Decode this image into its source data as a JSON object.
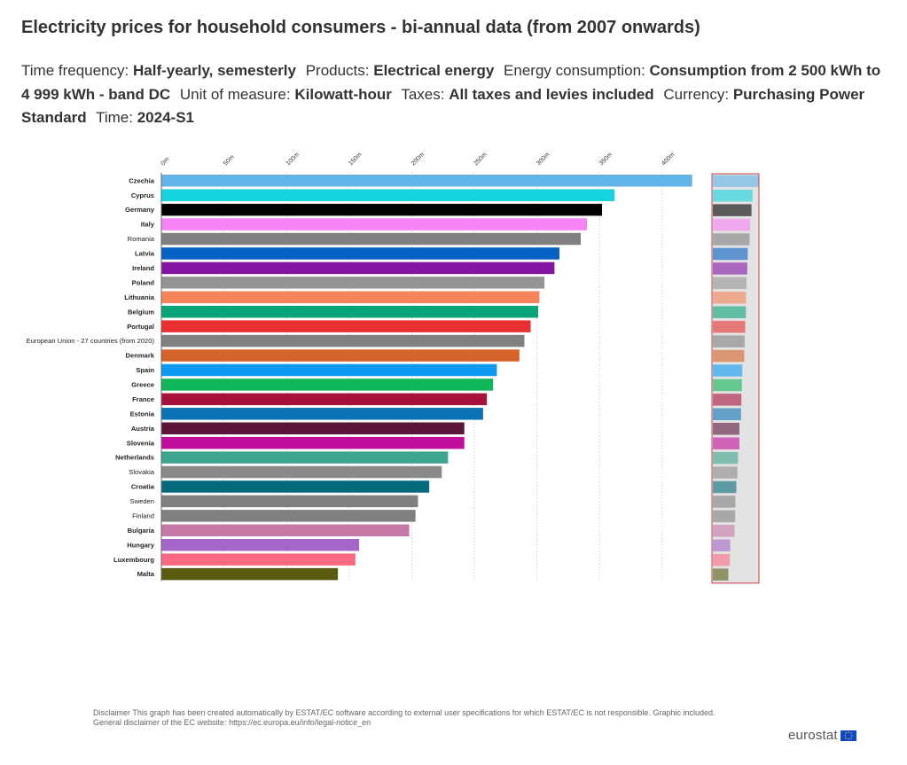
{
  "header": {
    "title": "Electricity prices for household consumers - bi-annual data (from 2007 onwards)",
    "filters": [
      {
        "label": "Time frequency:",
        "value": "Half-yearly, semesterly"
      },
      {
        "label": "Products:",
        "value": "Electrical energy"
      },
      {
        "label": "Energy consumption:",
        "value": "Consumption from 2 500 kWh to 4 999 kWh - band DC"
      },
      {
        "label": "Unit of measure:",
        "value": "Kilowatt-hour"
      },
      {
        "label": "Taxes:",
        "value": "All taxes and levies included"
      },
      {
        "label": "Currency:",
        "value": "Purchasing Power Standard"
      },
      {
        "label": "Time:",
        "value": "2024-S1"
      }
    ]
  },
  "footer": {
    "disclaimer_line1": "Disclaimer This graph has been created automatically by ESTAT/EC software according to external user specifications for which ESTAT/EC is not responsible. Graphic included.",
    "disclaimer_line2": "General disclaimer of the EC website: https://ec.europa.eu/info/legal-notice_en",
    "brand": "eurostat"
  },
  "chart_data": {
    "type": "bar",
    "orientation": "horizontal",
    "title": "",
    "xlabel": "",
    "ylabel": "",
    "xlim": [
      0,
      420
    ],
    "ticks": [
      0,
      50,
      100,
      150,
      200,
      250,
      300,
      350,
      400
    ],
    "tick_labels": [
      "0m",
      "50m",
      "100m",
      "150m",
      "200m",
      "250m",
      "300m",
      "350m",
      "400m"
    ],
    "grid": true,
    "overview_minimap": true,
    "categories": [
      "Czechia",
      "Cyprus",
      "Germany",
      "Italy",
      "Romania",
      "Latvia",
      "Ireland",
      "Poland",
      "Lithuania",
      "Belgium",
      "Portugal",
      "European Union - 27 countries (from 2020)",
      "Denmark",
      "Spain",
      "Greece",
      "France",
      "Estonia",
      "Austria",
      "Slovenia",
      "Netherlands",
      "Slovakia",
      "Croatia",
      "Sweden",
      "Finland",
      "Bulgaria",
      "Hungary",
      "Luxembourg",
      "Malta"
    ],
    "values": [
      424,
      362,
      352,
      340,
      335,
      318,
      314,
      306,
      302,
      301,
      295,
      290,
      286,
      268,
      265,
      260,
      257,
      242,
      242,
      229,
      224,
      214,
      205,
      203,
      198,
      158,
      155,
      141
    ],
    "bold_labels": [
      true,
      true,
      true,
      true,
      false,
      true,
      true,
      true,
      true,
      true,
      true,
      false,
      true,
      true,
      true,
      true,
      true,
      true,
      true,
      true,
      false,
      true,
      false,
      false,
      true,
      true,
      true,
      true
    ],
    "colors": [
      "#63b4e6",
      "#15d4de",
      "#000000",
      "#f784f4",
      "#808080",
      "#0561c4",
      "#8216a3",
      "#949494",
      "#f5845a",
      "#08a379",
      "#e83030",
      "#808080",
      "#d6632a",
      "#0c99f2",
      "#11b55a",
      "#a8103e",
      "#0b73b5",
      "#5a1539",
      "#c10d9b",
      "#3ea68e",
      "#8a8a8a",
      "#056b7c",
      "#808080",
      "#808080",
      "#c678a6",
      "#a466c8",
      "#fb6a82",
      "#5a5b10"
    ]
  }
}
